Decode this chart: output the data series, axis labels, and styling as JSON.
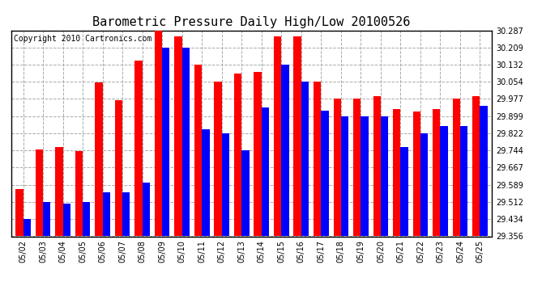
{
  "title": "Barometric Pressure Daily High/Low 20100526",
  "copyright": "Copyright 2010 Cartronics.com",
  "dates": [
    "05/02",
    "05/03",
    "05/04",
    "05/05",
    "05/06",
    "05/07",
    "05/08",
    "05/09",
    "05/10",
    "05/11",
    "05/12",
    "05/13",
    "05/14",
    "05/15",
    "05/16",
    "05/17",
    "05/18",
    "05/19",
    "05/20",
    "05/21",
    "05/22",
    "05/23",
    "05/24",
    "05/25"
  ],
  "highs": [
    29.57,
    29.75,
    29.76,
    29.74,
    30.05,
    29.97,
    30.15,
    30.287,
    30.26,
    30.132,
    30.054,
    30.09,
    30.1,
    30.26,
    30.26,
    30.054,
    29.977,
    29.977,
    29.99,
    29.93,
    29.92,
    29.93,
    29.977,
    29.99
  ],
  "lows": [
    29.434,
    29.512,
    29.505,
    29.51,
    29.555,
    29.555,
    29.6,
    30.209,
    30.209,
    29.84,
    29.822,
    29.744,
    29.94,
    30.132,
    30.054,
    29.922,
    29.899,
    29.899,
    29.899,
    29.76,
    29.822,
    29.855,
    29.855,
    29.944
  ],
  "ylim_min": 29.356,
  "ylim_max": 30.287,
  "yticks": [
    29.356,
    29.434,
    29.512,
    29.589,
    29.667,
    29.744,
    29.822,
    29.899,
    29.977,
    30.054,
    30.132,
    30.209,
    30.287
  ],
  "bar_color_high": "#ff0000",
  "bar_color_low": "#0000ff",
  "background_color": "#ffffff",
  "grid_color": "#aaaaaa",
  "title_fontsize": 11,
  "copyright_fontsize": 7,
  "tick_fontsize": 7,
  "bar_width": 0.38
}
